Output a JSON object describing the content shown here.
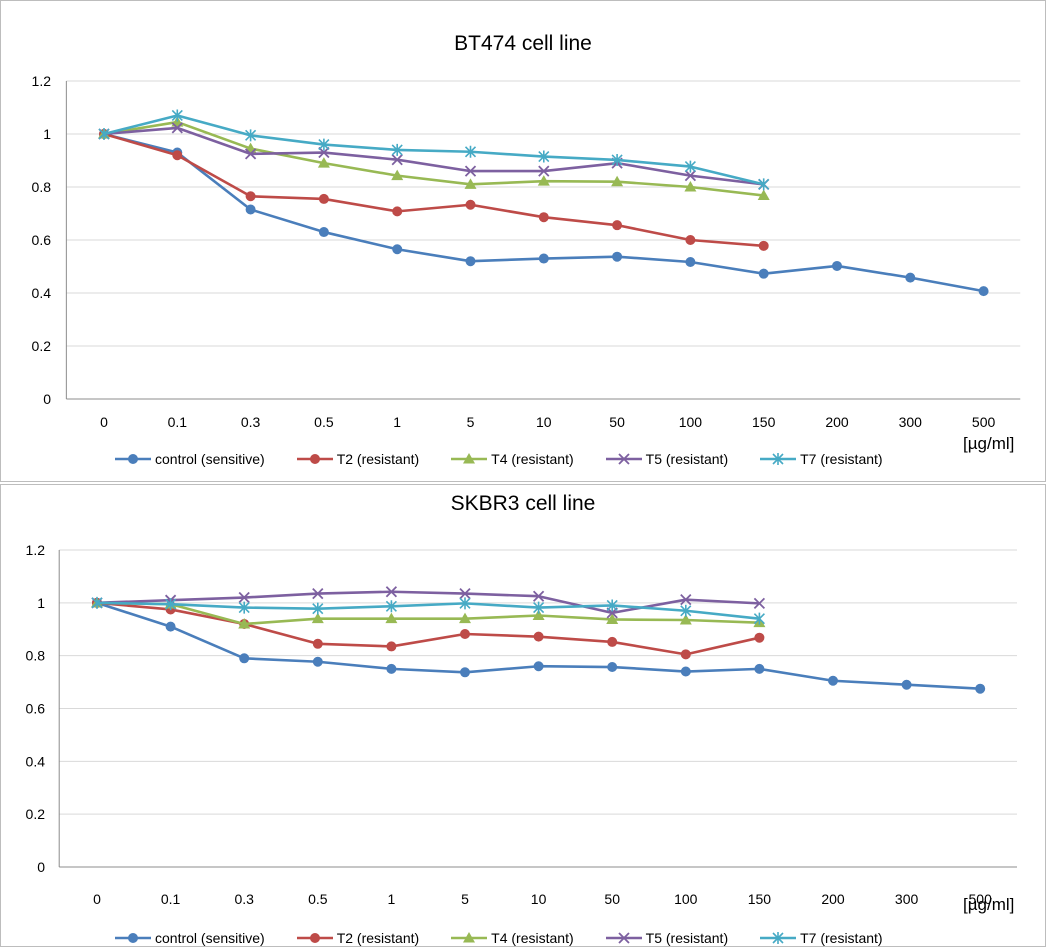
{
  "chart_data": [
    {
      "type": "line",
      "title": "BT474 cell line",
      "xlabel": "[µg/ml]",
      "ylabel": "",
      "ylim": [
        0,
        1.2
      ],
      "yticks": [
        "0",
        "0.2",
        "0.4",
        "0.6",
        "0.8",
        "1",
        "1.2"
      ],
      "categories": [
        "0",
        "0.1",
        "0.3",
        "0.5",
        "1",
        "5",
        "10",
        "50",
        "100",
        "150",
        "200",
        "300",
        "500"
      ],
      "grid": "horizontal",
      "legend_position": "bottom",
      "series": [
        {
          "name": "control (sensitive)",
          "color": "#4a7ebb",
          "marker": "circle",
          "values": [
            1.0,
            0.93,
            0.715,
            0.63,
            0.565,
            0.52,
            0.53,
            0.537,
            0.517,
            0.473,
            0.502,
            0.458,
            0.407
          ]
        },
        {
          "name": "T2 (resistant)",
          "color": "#be4b48",
          "marker": "circle",
          "values": [
            1.0,
            0.92,
            0.765,
            0.755,
            0.708,
            0.733,
            0.686,
            0.656,
            0.6,
            0.578,
            null,
            null,
            null
          ]
        },
        {
          "name": "T4 (resistant)",
          "color": "#98b954",
          "marker": "triangle",
          "values": [
            1.0,
            1.045,
            0.945,
            0.89,
            0.843,
            0.81,
            0.822,
            0.82,
            0.8,
            0.768,
            null,
            null,
            null
          ]
        },
        {
          "name": "T5 (resistant)",
          "color": "#7d60a0",
          "marker": "x",
          "values": [
            1.0,
            1.023,
            0.925,
            0.93,
            0.903,
            0.86,
            0.86,
            0.89,
            0.843,
            0.81,
            null,
            null,
            null
          ]
        },
        {
          "name": "T7 (resistant)",
          "color": "#46aac5",
          "marker": "star",
          "values": [
            1.0,
            1.07,
            0.995,
            0.96,
            0.94,
            0.933,
            0.915,
            0.902,
            0.877,
            0.81,
            null,
            null,
            null
          ]
        }
      ]
    },
    {
      "type": "line",
      "title": "SKBR3 cell line",
      "xlabel": "[µg/ml]",
      "ylabel": "",
      "ylim": [
        0,
        1.2
      ],
      "yticks": [
        "0",
        "0.2",
        "0.4",
        "0.6",
        "0.8",
        "1",
        "1.2"
      ],
      "categories": [
        "0",
        "0.1",
        "0.3",
        "0.5",
        "1",
        "5",
        "10",
        "50",
        "100",
        "150",
        "200",
        "300",
        "500"
      ],
      "grid": "horizontal",
      "legend_position": "bottom",
      "series": [
        {
          "name": "control (sensitive)",
          "color": "#4a7ebb",
          "marker": "circle",
          "values": [
            1.0,
            0.91,
            0.79,
            0.777,
            0.75,
            0.737,
            0.76,
            0.757,
            0.74,
            0.75,
            0.705,
            0.69,
            0.675
          ]
        },
        {
          "name": "T2 (resistant)",
          "color": "#be4b48",
          "marker": "circle",
          "values": [
            1.0,
            0.975,
            0.92,
            0.845,
            0.835,
            0.882,
            0.872,
            0.852,
            0.805,
            0.868,
            null,
            null,
            null
          ]
        },
        {
          "name": "T4 (resistant)",
          "color": "#98b954",
          "marker": "triangle",
          "values": [
            1.0,
            0.995,
            0.92,
            0.94,
            0.94,
            0.94,
            0.952,
            0.937,
            0.935,
            0.925,
            null,
            null,
            null
          ]
        },
        {
          "name": "T5 (resistant)",
          "color": "#7d60a0",
          "marker": "x",
          "values": [
            1.0,
            1.01,
            1.02,
            1.035,
            1.042,
            1.035,
            1.025,
            0.962,
            1.012,
            0.998,
            null,
            null,
            null
          ]
        },
        {
          "name": "T7 (resistant)",
          "color": "#46aac5",
          "marker": "star",
          "values": [
            1.0,
            0.995,
            0.982,
            0.978,
            0.987,
            0.998,
            0.982,
            0.99,
            0.97,
            0.94,
            null,
            null,
            null
          ]
        }
      ]
    }
  ]
}
